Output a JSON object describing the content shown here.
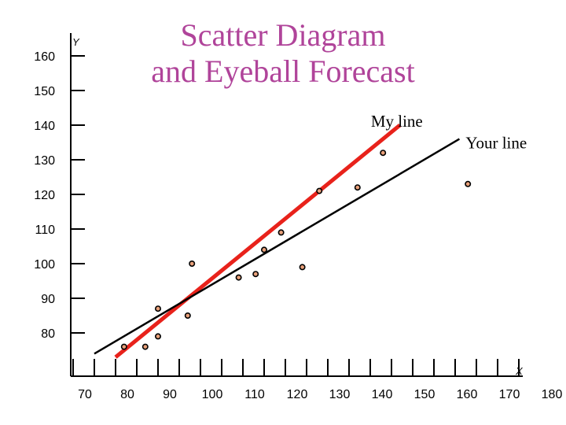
{
  "chart_data": {
    "type": "scatter",
    "title": "Scatter Diagram and Eyeball Forecast",
    "title_lines": [
      "Scatter Diagram",
      "and Eyeball Forecast"
    ],
    "xlabel": "X",
    "ylabel": "Y",
    "x_ticks": [
      70,
      80,
      90,
      100,
      110,
      120,
      130,
      140,
      150,
      160,
      170,
      180
    ],
    "y_ticks": [
      80,
      90,
      100,
      110,
      120,
      130,
      140,
      150,
      160
    ],
    "points": [
      {
        "x": 82,
        "y": 76
      },
      {
        "x": 87,
        "y": 76
      },
      {
        "x": 90,
        "y": 79
      },
      {
        "x": 90,
        "y": 87
      },
      {
        "x": 97,
        "y": 85
      },
      {
        "x": 98,
        "y": 100
      },
      {
        "x": 109,
        "y": 96
      },
      {
        "x": 113,
        "y": 97
      },
      {
        "x": 115,
        "y": 104
      },
      {
        "x": 119,
        "y": 109
      },
      {
        "x": 124,
        "y": 99
      },
      {
        "x": 128,
        "y": 121
      },
      {
        "x": 137,
        "y": 122
      },
      {
        "x": 143,
        "y": 132
      },
      {
        "x": 163,
        "y": 123
      }
    ],
    "lines": [
      {
        "name": "My line",
        "color": "#e8221b",
        "from": {
          "x": 80,
          "y": 73
        },
        "to": {
          "x": 147,
          "y": 140
        }
      },
      {
        "name": "Your line",
        "color": "#000000",
        "from": {
          "x": 75,
          "y": 74
        },
        "to": {
          "x": 161,
          "y": 136
        }
      }
    ],
    "point_color": "#e8a07a",
    "grid": false
  }
}
